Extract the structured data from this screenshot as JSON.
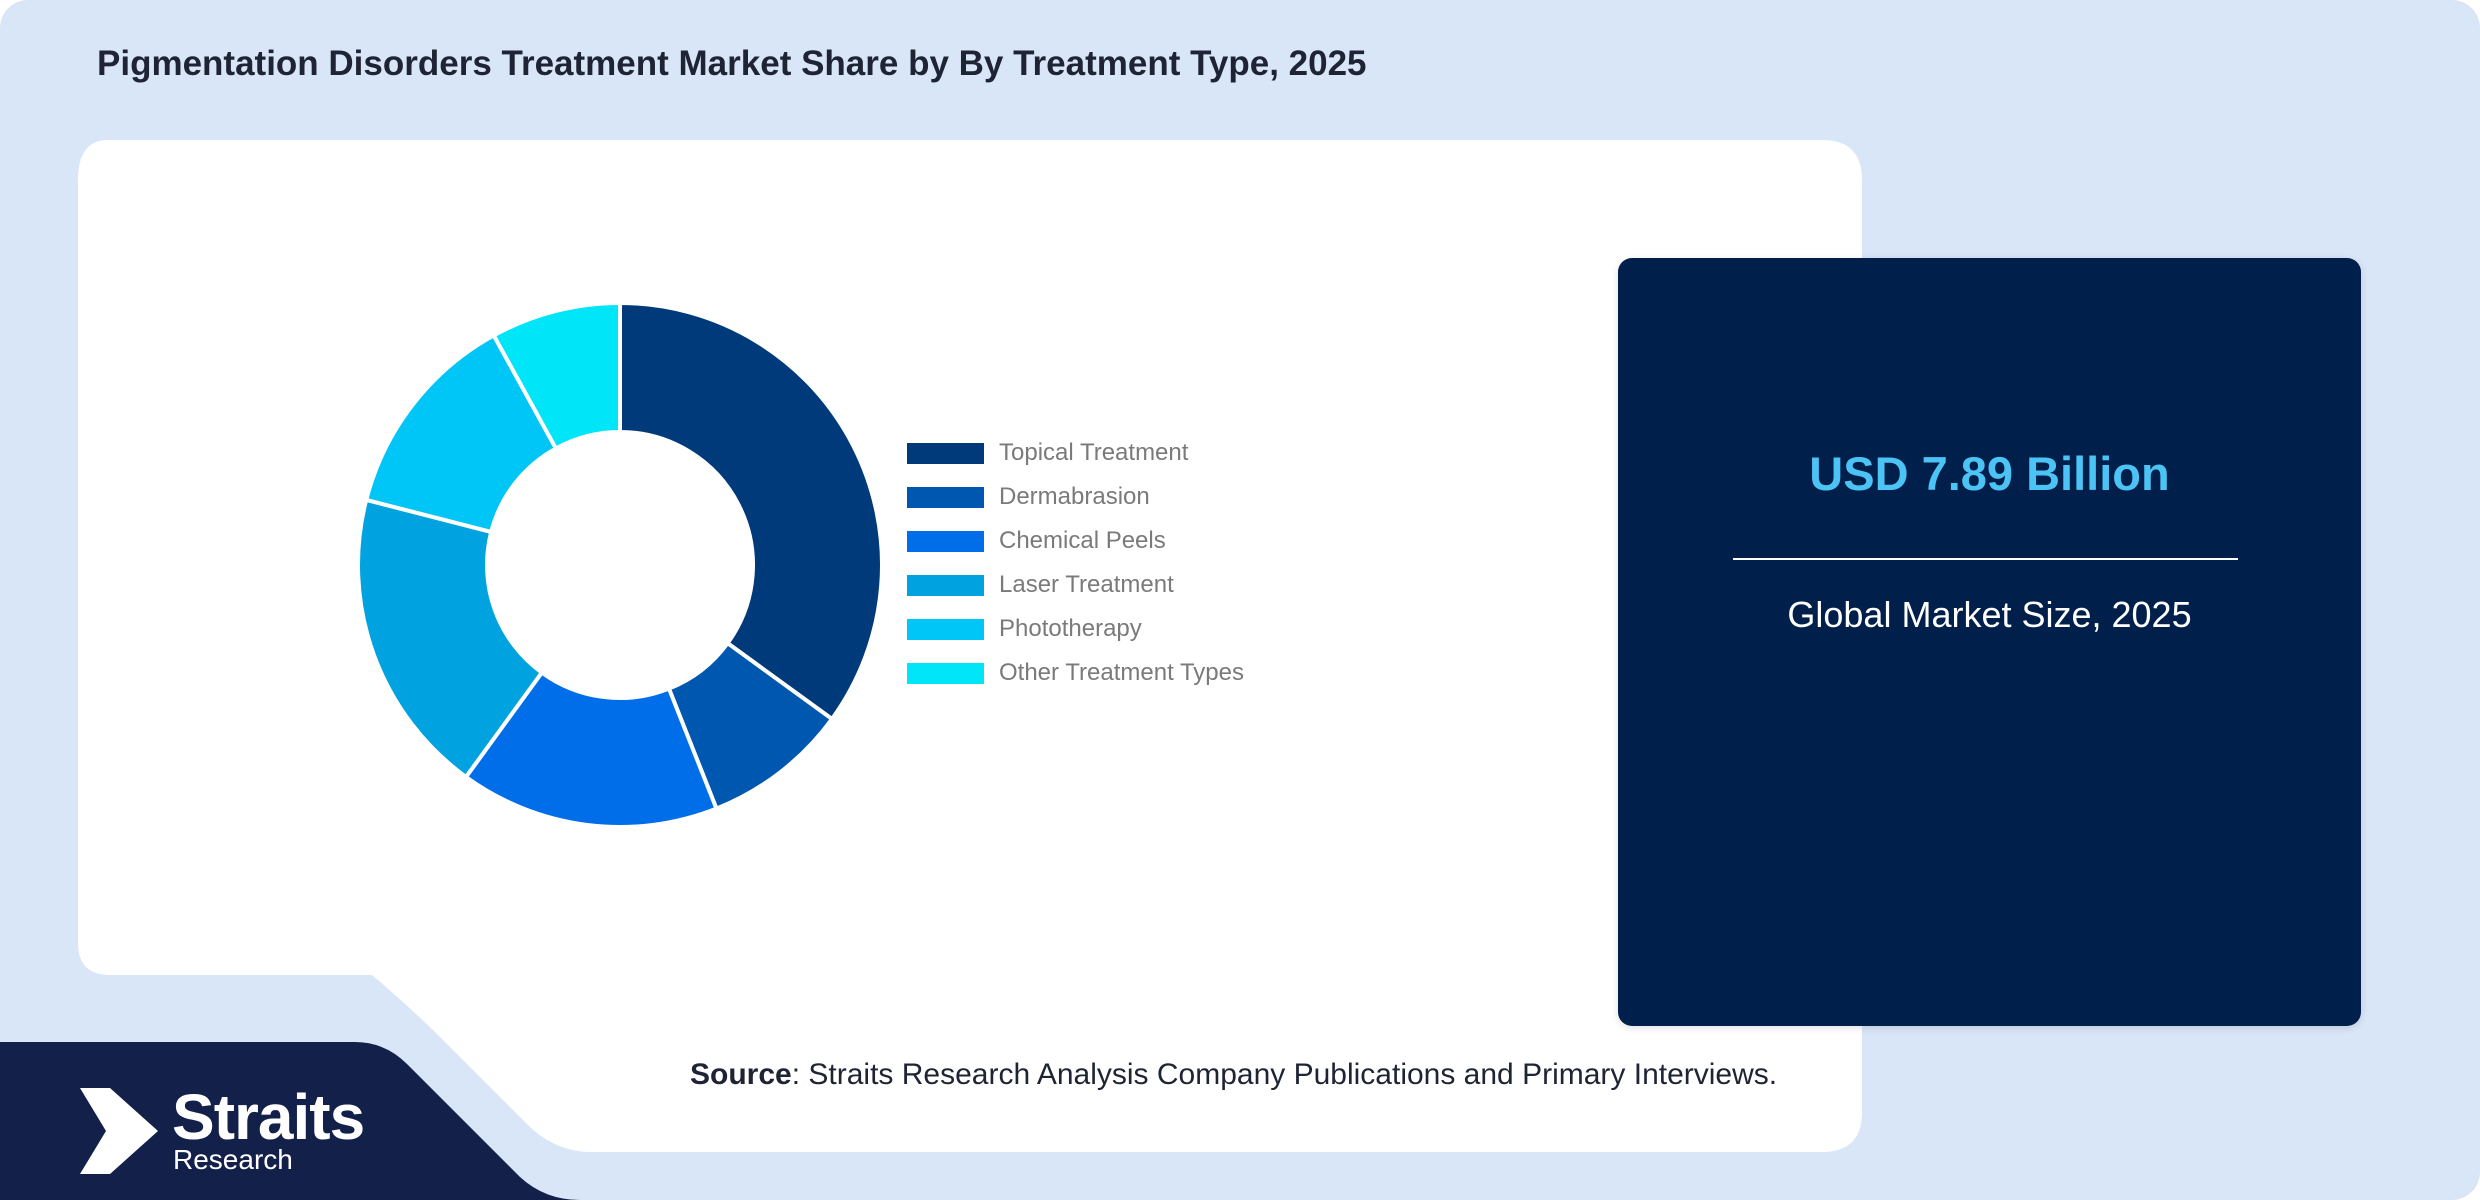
{
  "title": "Pigmentation Disorders Treatment Market Share by By Treatment Type, 2025",
  "chart_data": {
    "type": "pie",
    "donut": true,
    "categories": [
      "Topical Treatment",
      "Dermabrasion",
      "Chemical Peels",
      "Laser Treatment",
      "Phototherapy",
      "Other Treatment Types"
    ],
    "values": [
      35,
      9,
      16,
      19,
      13,
      8
    ],
    "colors": [
      "#003a7a",
      "#0057b0",
      "#006ee8",
      "#00a2e0",
      "#00c6f7",
      "#00e6f8"
    ],
    "legend_position": "right"
  },
  "market": {
    "value": "USD 7.89 Billion",
    "label": "Global Market Size, 2025"
  },
  "source": {
    "label": "Source",
    "text": ": Straits Research Analysis Company Publications and Primary Interviews."
  },
  "logo": {
    "name": "Straits",
    "sub": "Research"
  },
  "colors": {
    "background": "#d9e6f8",
    "panel": "#ffffff",
    "card": "#001f4a",
    "accent": "#4cc3f5",
    "logo_band": "#13204a"
  }
}
